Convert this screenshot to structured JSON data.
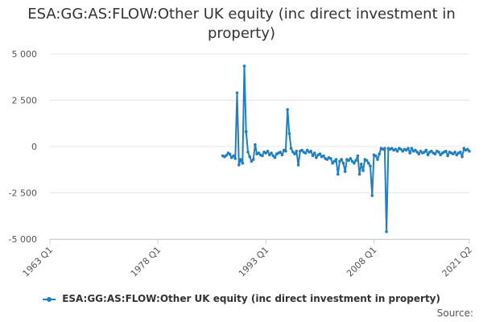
{
  "chart_data": {
    "type": "line",
    "title": "ESA:GG:AS:FLOW:Other UK equity (inc direct investment in property)",
    "xlabel": "",
    "ylabel": "",
    "x_tick_labels": [
      "1963 Q1",
      "1978 Q1",
      "1993 Q1",
      "2008 Q1",
      "2021 Q2"
    ],
    "y_tick_labels": [
      "5 000",
      "2 500",
      "0",
      "-2 500",
      "-5 000"
    ],
    "y_ticks": [
      5000,
      2500,
      0,
      -2500,
      -5000
    ],
    "ylim": [
      -5000,
      5000
    ],
    "x_range": [
      "1963 Q1",
      "2021 Q2"
    ],
    "grid": "horizontal",
    "legend_position": "bottom",
    "series": [
      {
        "name": "ESA:GG:AS:FLOW:Other UK equity (inc direct investment in property)",
        "color": "#1f7fc0",
        "x": [
          "1987 Q1",
          "1987 Q2",
          "1987 Q3",
          "1987 Q4",
          "1988 Q1",
          "1988 Q2",
          "1988 Q3",
          "1988 Q4",
          "1989 Q1",
          "1989 Q2",
          "1989 Q3",
          "1989 Q4",
          "1990 Q1",
          "1990 Q2",
          "1990 Q3",
          "1990 Q4",
          "1991 Q1",
          "1991 Q2",
          "1991 Q3",
          "1991 Q4",
          "1992 Q1",
          "1992 Q2",
          "1992 Q3",
          "1992 Q4",
          "1993 Q1",
          "1993 Q2",
          "1993 Q3",
          "1993 Q4",
          "1994 Q1",
          "1994 Q2",
          "1994 Q3",
          "1994 Q4",
          "1995 Q1",
          "1995 Q2",
          "1995 Q3",
          "1995 Q4",
          "1996 Q1",
          "1996 Q2",
          "1996 Q3",
          "1996 Q4",
          "1997 Q1",
          "1997 Q2",
          "1997 Q3",
          "1997 Q4",
          "1998 Q1",
          "1998 Q2",
          "1998 Q3",
          "1998 Q4",
          "1999 Q1",
          "1999 Q2",
          "1999 Q3",
          "1999 Q4",
          "2000 Q1",
          "2000 Q2",
          "2000 Q3",
          "2000 Q4",
          "2001 Q1",
          "2001 Q2",
          "2001 Q3",
          "2001 Q4",
          "2002 Q1",
          "2002 Q2",
          "2002 Q3",
          "2002 Q4",
          "2003 Q1",
          "2003 Q2",
          "2003 Q3",
          "2003 Q4",
          "2004 Q1",
          "2004 Q2",
          "2004 Q3",
          "2004 Q4",
          "2005 Q1",
          "2005 Q2",
          "2005 Q3",
          "2005 Q4",
          "2006 Q1",
          "2006 Q2",
          "2006 Q3",
          "2006 Q4",
          "2007 Q1",
          "2007 Q2",
          "2007 Q3",
          "2007 Q4",
          "2008 Q1",
          "2008 Q2",
          "2008 Q3",
          "2008 Q4",
          "2009 Q1",
          "2009 Q2",
          "2009 Q3",
          "2009 Q4",
          "2010 Q1",
          "2010 Q2",
          "2010 Q3",
          "2010 Q4",
          "2011 Q1",
          "2011 Q2",
          "2011 Q3",
          "2011 Q4",
          "2012 Q1",
          "2012 Q2",
          "2012 Q3",
          "2012 Q4",
          "2013 Q1",
          "2013 Q2",
          "2013 Q3",
          "2013 Q4",
          "2014 Q1",
          "2014 Q2",
          "2014 Q3",
          "2014 Q4",
          "2015 Q1",
          "2015 Q2",
          "2015 Q3",
          "2015 Q4",
          "2016 Q1",
          "2016 Q2",
          "2016 Q3",
          "2016 Q4",
          "2017 Q1",
          "2017 Q2",
          "2017 Q3",
          "2017 Q4",
          "2018 Q1",
          "2018 Q2",
          "2018 Q3",
          "2018 Q4",
          "2019 Q1",
          "2019 Q2",
          "2019 Q3",
          "2019 Q4",
          "2020 Q1",
          "2020 Q2",
          "2020 Q3",
          "2020 Q4",
          "2021 Q1",
          "2021 Q2"
        ],
        "values": [
          -500,
          -550,
          -480,
          -350,
          -420,
          -600,
          -500,
          -650,
          2900,
          -1000,
          -700,
          -900,
          4350,
          800,
          -300,
          -550,
          -800,
          -700,
          100,
          -400,
          -350,
          -450,
          -500,
          -300,
          -350,
          -250,
          -450,
          -350,
          -500,
          -600,
          -400,
          -350,
          -300,
          -450,
          -200,
          -250,
          2000,
          700,
          -100,
          -300,
          -400,
          -250,
          -1000,
          -250,
          -200,
          -300,
          -350,
          -200,
          -300,
          -250,
          -500,
          -350,
          -600,
          -450,
          -400,
          -550,
          -500,
          -650,
          -700,
          -600,
          -650,
          -900,
          -800,
          -700,
          -1500,
          -800,
          -700,
          -900,
          -1350,
          -700,
          -750,
          -650,
          -800,
          -900,
          -750,
          -500,
          -1500,
          -950,
          -1300,
          -700,
          -750,
          -900,
          -1050,
          -2650,
          -450,
          -500,
          -700,
          -400,
          -100,
          -150,
          -100,
          -4600,
          -100,
          -150,
          -100,
          -200,
          -150,
          -250,
          -100,
          -150,
          -250,
          -150,
          -200,
          -100,
          -350,
          -100,
          -250,
          -200,
          -300,
          -400,
          -250,
          -350,
          -300,
          -200,
          -450,
          -300,
          -250,
          -350,
          -400,
          -250,
          -300,
          -450,
          -350,
          -300,
          -250,
          -500,
          -300,
          -350,
          -400,
          -300,
          -450,
          -350,
          -300,
          -550,
          -100,
          -200,
          -150,
          -250
        ]
      }
    ]
  },
  "legend": {
    "label": "ESA:GG:AS:FLOW:Other UK equity (inc direct investment in property)"
  },
  "footer": {
    "source_label": "Source:"
  },
  "title_lines": [
    "ESA:GG:AS:FLOW:Other UK equity (inc direct investment in",
    "property)"
  ]
}
